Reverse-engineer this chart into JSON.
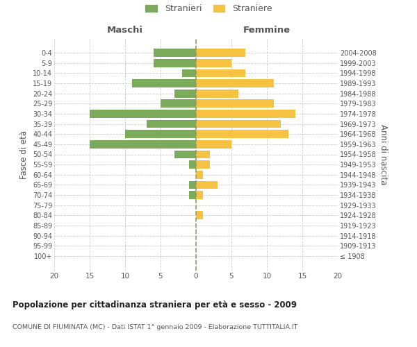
{
  "age_groups": [
    "100+",
    "95-99",
    "90-94",
    "85-89",
    "80-84",
    "75-79",
    "70-74",
    "65-69",
    "60-64",
    "55-59",
    "50-54",
    "45-49",
    "40-44",
    "35-39",
    "30-34",
    "25-29",
    "20-24",
    "15-19",
    "10-14",
    "5-9",
    "0-4"
  ],
  "birth_years": [
    "≤ 1908",
    "1909-1913",
    "1914-1918",
    "1919-1923",
    "1924-1928",
    "1929-1933",
    "1934-1938",
    "1939-1943",
    "1944-1948",
    "1949-1953",
    "1954-1958",
    "1959-1963",
    "1964-1968",
    "1969-1973",
    "1974-1978",
    "1979-1983",
    "1984-1988",
    "1989-1993",
    "1994-1998",
    "1999-2003",
    "2004-2008"
  ],
  "males": [
    0,
    0,
    0,
    0,
    0,
    0,
    1,
    1,
    0,
    1,
    3,
    15,
    10,
    7,
    15,
    5,
    3,
    9,
    2,
    6,
    6
  ],
  "females": [
    0,
    0,
    0,
    0,
    1,
    0,
    1,
    3,
    1,
    2,
    2,
    5,
    13,
    12,
    14,
    11,
    6,
    11,
    7,
    5,
    7
  ],
  "male_color": "#7aaa5a",
  "female_color": "#f5c242",
  "bar_height": 0.8,
  "xlabel_left": "Maschi",
  "xlabel_right": "Femmine",
  "ylabel_left": "Fasce di età",
  "ylabel_right": "Anni di nascita",
  "title": "Popolazione per cittadinanza straniera per età e sesso - 2009",
  "subtitle": "COMUNE DI FIUMINATA (MC) - Dati ISTAT 1° gennaio 2009 - Elaborazione TUTTITALIA.IT",
  "legend_male": "Stranieri",
  "legend_female": "Straniere",
  "background_color": "#ffffff",
  "grid_color": "#cccccc",
  "text_color": "#555555",
  "dashed_line_color": "#999966"
}
